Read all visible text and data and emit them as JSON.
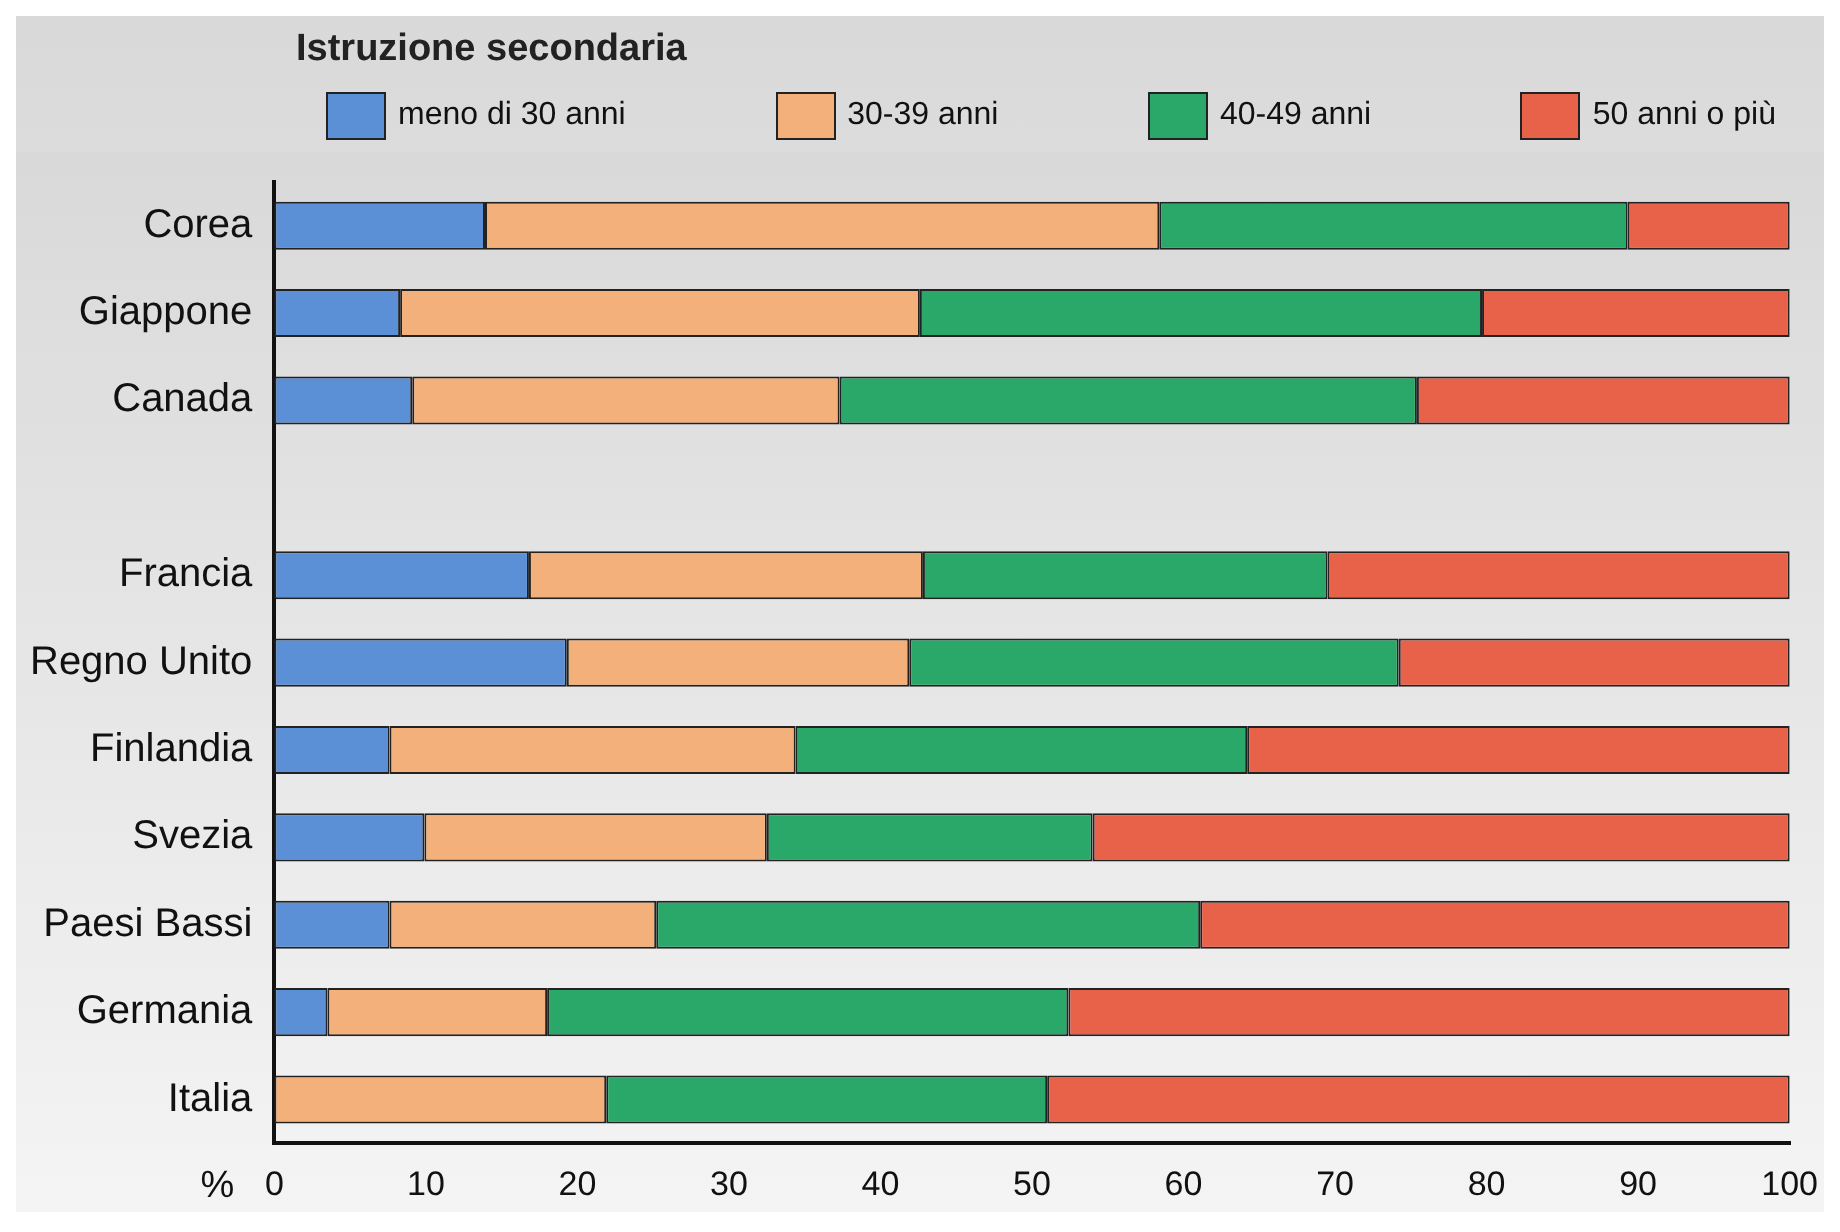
{
  "chart_data": {
    "type": "bar",
    "orientation": "horizontal",
    "stacked": true,
    "title": "Istruzione secondaria",
    "xlabel": "%",
    "categories": [
      "Corea",
      "Giappone",
      "Canada",
      null,
      "Francia",
      "Regno Unito",
      "Finlandia",
      "Svezia",
      "Paesi Bassi",
      "Germania",
      "Italia"
    ],
    "series": [
      {
        "name": "meno di 30 anni",
        "color": "#5b8fd6",
        "values": [
          13.9,
          8.3,
          9.1,
          null,
          16.8,
          19.3,
          7.6,
          9.9,
          7.6,
          3.5,
          0
        ]
      },
      {
        "name": "30-39 anni",
        "color": "#f4b07a",
        "values": [
          44.5,
          34.3,
          28.2,
          null,
          26.0,
          22.6,
          26.8,
          22.6,
          17.6,
          14.5,
          21.9
        ]
      },
      {
        "name": "40-49 anni",
        "color": "#2aa86a",
        "values": [
          30.9,
          37.1,
          38.1,
          null,
          26.7,
          32.3,
          29.8,
          21.5,
          35.9,
          34.4,
          29.1
        ]
      },
      {
        "name": "50 anni o più",
        "color": "#e8624a",
        "values": [
          10.7,
          20.3,
          24.6,
          null,
          30.5,
          25.8,
          35.8,
          46.0,
          38.9,
          47.6,
          49.0
        ]
      }
    ],
    "xlim": [
      0,
      100
    ],
    "xticks": [
      0,
      10,
      20,
      30,
      40,
      50,
      60,
      70,
      80,
      90,
      100
    ],
    "grid": false,
    "legend": "top"
  }
}
